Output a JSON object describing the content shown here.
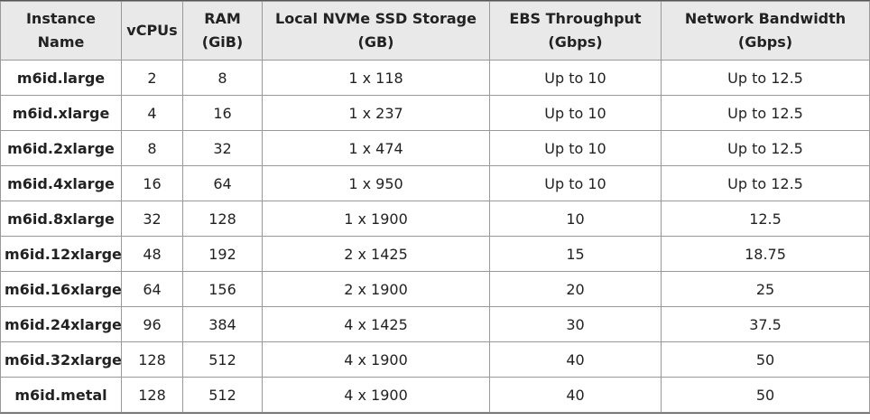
{
  "table": {
    "header": [
      "Instance Name",
      "vCPUs",
      "RAM (GiB)",
      "Local NVMe SSD Storage (GB)",
      "EBS Throughput (Gbps)",
      "Network Bandwidth (Gbps)"
    ],
    "rows": [
      [
        "m6id.large",
        "2",
        "8",
        "1 x 118",
        "Up to 10",
        "Up to 12.5"
      ],
      [
        "m6id.xlarge",
        "4",
        "16",
        "1 x 237",
        "Up to 10",
        "Up to 12.5"
      ],
      [
        "m6id.2xlarge",
        "8",
        "32",
        "1 x 474",
        "Up to 10",
        "Up to 12.5"
      ],
      [
        "m6id.4xlarge",
        "16",
        "64",
        "1 x 950",
        "Up to 10",
        "Up to 12.5"
      ],
      [
        "m6id.8xlarge",
        "32",
        "128",
        "1 x 1900",
        "10",
        "12.5"
      ],
      [
        "m6id.12xlarge",
        "48",
        "192",
        "2 x 1425",
        "15",
        "18.75"
      ],
      [
        "m6id.16xlarge",
        "64",
        "156",
        "2 x 1900",
        "20",
        "25"
      ],
      [
        "m6id.24xlarge",
        "96",
        "384",
        "4 x 1425",
        "30",
        "37.5"
      ],
      [
        "m6id.32xlarge",
        "128",
        "512",
        "4 x 1900",
        "40",
        "50"
      ],
      [
        "m6id.metal",
        "128",
        "512",
        "4 x 1900",
        "40",
        "50"
      ]
    ]
  }
}
